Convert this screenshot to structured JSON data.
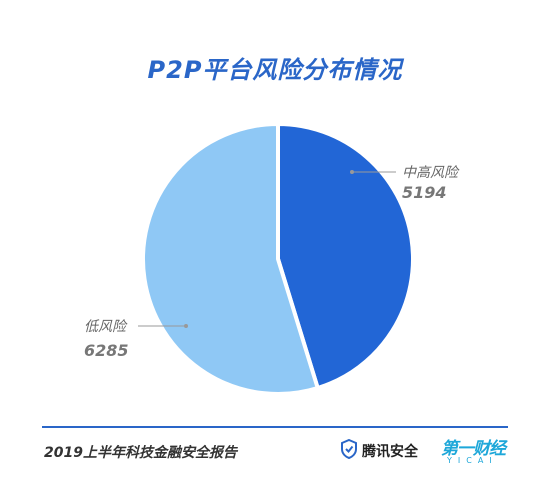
{
  "chart_data": {
    "type": "pie",
    "title": "P2P平台风险分布情况",
    "slices": [
      {
        "label": "中高风险",
        "value": 5194,
        "color": "#2266d6"
      },
      {
        "label": "低风险",
        "value": 6285,
        "color": "#8fc8f5"
      }
    ]
  },
  "footer": {
    "report_title": "2019上半年科技金融安全报告",
    "brand_tencent": "腾讯安全",
    "brand_yicai": "第一财经",
    "brand_yicai_sub": "YICAI"
  },
  "colors": {
    "accent": "#2a66c8",
    "brand_tencent": "#2a66c8",
    "brand_yicai": "#1da7d9"
  }
}
